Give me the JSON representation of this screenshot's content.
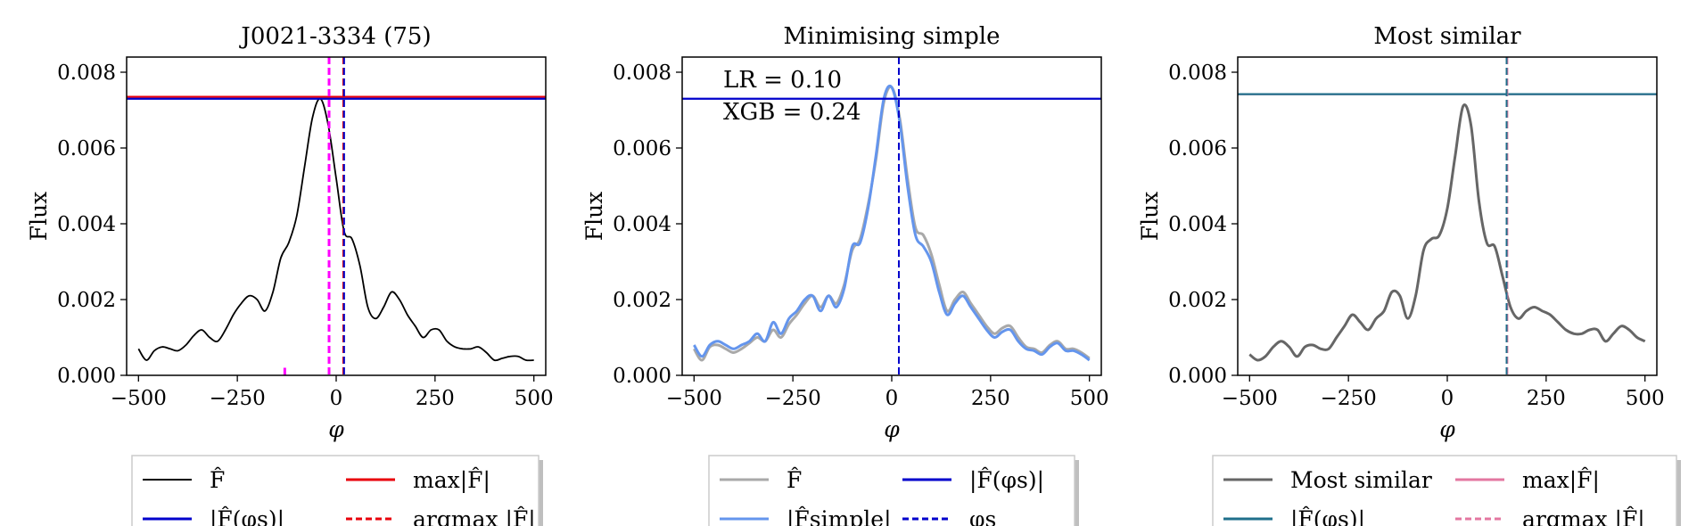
{
  "chart_data": [
    {
      "type": "line",
      "title": "J0021-3334 (75)",
      "xlabel": "φ",
      "ylabel": "Flux",
      "xlim": [
        -530,
        530
      ],
      "ylim": [
        0,
        0.0084
      ],
      "xticks": [
        -500,
        -250,
        0,
        250,
        500
      ],
      "xtick_labels": [
        "−500",
        "−250",
        "0",
        "250",
        "500"
      ],
      "yticks": [
        0,
        0.002,
        0.004,
        0.006,
        0.008
      ],
      "ytick_labels": [
        "0.000",
        "0.002",
        "0.004",
        "0.006",
        "0.008"
      ],
      "series": [
        {
          "name": "F̂",
          "color": "#000000",
          "x": [
            -500,
            -480,
            -460,
            -440,
            -420,
            -400,
            -380,
            -360,
            -340,
            -320,
            -300,
            -280,
            -260,
            -240,
            -220,
            -200,
            -180,
            -160,
            -140,
            -120,
            -100,
            -80,
            -60,
            -40,
            -20,
            0,
            20,
            40,
            60,
            80,
            100,
            120,
            140,
            160,
            180,
            200,
            220,
            240,
            260,
            280,
            300,
            320,
            340,
            360,
            380,
            400,
            420,
            440,
            460,
            480,
            500
          ],
          "y": [
            0.0007,
            0.0004,
            0.00065,
            0.00075,
            0.0007,
            0.00065,
            0.0008,
            0.00105,
            0.0012,
            0.001,
            0.0009,
            0.0012,
            0.0016,
            0.0019,
            0.0021,
            0.002,
            0.0017,
            0.0022,
            0.0031,
            0.0035,
            0.0042,
            0.0055,
            0.0068,
            0.0073,
            0.0066,
            0.0052,
            0.0038,
            0.0036,
            0.0029,
            0.0018,
            0.0015,
            0.0018,
            0.0022,
            0.002,
            0.0016,
            0.0013,
            0.001,
            0.0012,
            0.0012,
            0.0009,
            0.00075,
            0.0007,
            0.0007,
            0.00075,
            0.0006,
            0.0004,
            0.00045,
            0.0005,
            0.0005,
            0.0004,
            0.0004
          ]
        }
      ],
      "hlines": [
        {
          "name": "max|F̂|",
          "y": 0.00735,
          "color": "#e8000b",
          "style": "solid"
        },
        {
          "name": "|F̂(φs)|",
          "y": 0.0073,
          "color": "#0000cc",
          "style": "solid"
        }
      ],
      "vlines": [
        {
          "name": "argmax |F̂|",
          "x": 18,
          "color": "#e8000b",
          "style": "dashed"
        },
        {
          "name": "φs",
          "x": 20,
          "color": "#0000cc",
          "style": "dashed"
        },
        {
          "name": "",
          "x": -18,
          "color": "#ff00ff",
          "style": "dashed"
        }
      ],
      "markers": [
        {
          "x": -130,
          "y0": 0,
          "y1": 0.0002,
          "color": "#ff00ff"
        }
      ],
      "legend": [
        {
          "label": "F̂",
          "color": "#000000",
          "style": "solid"
        },
        {
          "label": "max|F̂|",
          "color": "#e8000b",
          "style": "solid"
        },
        {
          "label": "|F̂(φs)|",
          "color": "#0000cc",
          "style": "solid"
        },
        {
          "label": "argmax |F̂|",
          "color": "#e8000b",
          "style": "dashed"
        }
      ]
    },
    {
      "type": "line",
      "title": "Minimising simple",
      "xlabel": "φ",
      "ylabel": "Flux",
      "xlim": [
        -530,
        530
      ],
      "ylim": [
        0,
        0.0084
      ],
      "xticks": [
        -500,
        -250,
        0,
        250,
        500
      ],
      "xtick_labels": [
        "−500",
        "−250",
        "0",
        "250",
        "500"
      ],
      "yticks": [
        0,
        0.002,
        0.004,
        0.006,
        0.008
      ],
      "ytick_labels": [
        "0.000",
        "0.002",
        "0.004",
        "0.006",
        "0.008"
      ],
      "annotations": [
        "LR = 0.10",
        "XGB = 0.24"
      ],
      "series": [
        {
          "name": "F̂",
          "color": "#a9a9a9",
          "x": [
            -500,
            -480,
            -460,
            -440,
            -420,
            -400,
            -380,
            -360,
            -340,
            -320,
            -300,
            -280,
            -260,
            -240,
            -220,
            -200,
            -180,
            -160,
            -140,
            -120,
            -100,
            -80,
            -60,
            -40,
            -20,
            0,
            20,
            40,
            60,
            80,
            100,
            120,
            140,
            160,
            180,
            200,
            220,
            240,
            260,
            280,
            300,
            320,
            340,
            360,
            380,
            400,
            420,
            440,
            460,
            480,
            500
          ],
          "y": [
            0.0007,
            0.0004,
            0.00075,
            0.0008,
            0.0007,
            0.0006,
            0.0007,
            0.00085,
            0.001,
            0.0009,
            0.0012,
            0.001,
            0.00135,
            0.0016,
            0.0019,
            0.0021,
            0.0018,
            0.0021,
            0.0019,
            0.0024,
            0.0033,
            0.0036,
            0.0045,
            0.0057,
            0.0072,
            0.0076,
            0.0068,
            0.0052,
            0.0039,
            0.0037,
            0.0032,
            0.0024,
            0.0017,
            0.002,
            0.0022,
            0.0019,
            0.0016,
            0.0013,
            0.0011,
            0.00125,
            0.0013,
            0.001,
            0.00075,
            0.0007,
            0.0006,
            0.0008,
            0.0009,
            0.0007,
            0.0007,
            0.0006,
            0.00045
          ]
        },
        {
          "name": "|F̂simple|",
          "color": "#6495ed",
          "x": [
            -500,
            -480,
            -460,
            -440,
            -420,
            -400,
            -380,
            -360,
            -340,
            -320,
            -300,
            -280,
            -260,
            -240,
            -220,
            -200,
            -180,
            -160,
            -140,
            -120,
            -100,
            -80,
            -60,
            -40,
            -20,
            0,
            20,
            40,
            60,
            80,
            100,
            120,
            140,
            160,
            180,
            200,
            220,
            240,
            260,
            280,
            300,
            320,
            340,
            360,
            380,
            400,
            420,
            440,
            460,
            480,
            500
          ],
          "y": [
            0.0008,
            0.0005,
            0.0008,
            0.0009,
            0.0008,
            0.0007,
            0.0008,
            0.0009,
            0.0011,
            0.0009,
            0.0014,
            0.0011,
            0.0015,
            0.0017,
            0.002,
            0.0021,
            0.0017,
            0.0021,
            0.0018,
            0.0023,
            0.0034,
            0.0035,
            0.0044,
            0.0058,
            0.0073,
            0.0076,
            0.0067,
            0.005,
            0.0037,
            0.0034,
            0.003,
            0.0022,
            0.0016,
            0.0019,
            0.0021,
            0.0018,
            0.0015,
            0.0012,
            0.001,
            0.00115,
            0.0012,
            0.0009,
            0.0007,
            0.00065,
            0.00055,
            0.00075,
            0.00085,
            0.00065,
            0.00065,
            0.00055,
            0.0004
          ]
        }
      ],
      "hlines": [
        {
          "name": "|F̂(φs)|",
          "y": 0.0073,
          "color": "#0000cc",
          "style": "solid"
        }
      ],
      "vlines": [
        {
          "name": "φs",
          "x": 18,
          "color": "#0000cc",
          "style": "dashed"
        }
      ],
      "legend": [
        {
          "label": "F̂",
          "color": "#a9a9a9",
          "style": "solid"
        },
        {
          "label": "|F̂(φs)|",
          "color": "#0000cc",
          "style": "solid"
        },
        {
          "label": "|F̂simple|",
          "color": "#6495ed",
          "style": "solid"
        },
        {
          "label": "φs",
          "color": "#0000cc",
          "style": "dashed"
        }
      ]
    },
    {
      "type": "line",
      "title": "Most similar",
      "xlabel": "φ",
      "ylabel": "Flux",
      "xlim": [
        -530,
        530
      ],
      "ylim": [
        0,
        0.0084
      ],
      "xticks": [
        -500,
        -250,
        0,
        250,
        500
      ],
      "xtick_labels": [
        "−500",
        "−250",
        "0",
        "250",
        "500"
      ],
      "yticks": [
        0,
        0.002,
        0.004,
        0.006,
        0.008
      ],
      "ytick_labels": [
        "0.000",
        "0.002",
        "0.004",
        "0.006",
        "0.008"
      ],
      "series": [
        {
          "name": "Most similar",
          "color": "#666666",
          "x": [
            -500,
            -480,
            -460,
            -440,
            -420,
            -400,
            -380,
            -360,
            -340,
            -320,
            -300,
            -280,
            -260,
            -240,
            -220,
            -200,
            -180,
            -160,
            -140,
            -120,
            -100,
            -80,
            -60,
            -40,
            -20,
            0,
            20,
            40,
            60,
            80,
            100,
            120,
            140,
            160,
            180,
            200,
            220,
            240,
            260,
            280,
            300,
            320,
            340,
            360,
            380,
            400,
            420,
            440,
            460,
            480,
            500
          ],
          "y": [
            0.00055,
            0.0004,
            0.0005,
            0.00075,
            0.0009,
            0.00075,
            0.0005,
            0.00075,
            0.0008,
            0.0007,
            0.0007,
            0.001,
            0.0013,
            0.0016,
            0.0014,
            0.0012,
            0.0015,
            0.0017,
            0.0022,
            0.0021,
            0.0015,
            0.0021,
            0.0033,
            0.0036,
            0.0037,
            0.0044,
            0.0058,
            0.0071,
            0.0066,
            0.0046,
            0.0035,
            0.0034,
            0.0026,
            0.0018,
            0.0015,
            0.0017,
            0.0018,
            0.0017,
            0.0016,
            0.0014,
            0.0012,
            0.0011,
            0.0011,
            0.0012,
            0.0012,
            0.0009,
            0.0011,
            0.0013,
            0.0012,
            0.001,
            0.0009
          ]
        }
      ],
      "x_shift": 150,
      "hlines": [
        {
          "name": "max|F̂|",
          "y": 0.00742,
          "color": "#e377a0",
          "style": "solid"
        },
        {
          "name": "|F̂(φs)|",
          "y": 0.00742,
          "color": "#1f6f8b",
          "style": "solid"
        }
      ],
      "vlines": [
        {
          "name": "argmax |F̂|",
          "x": 152,
          "color": "#e377a0",
          "style": "dashed"
        },
        {
          "name": "",
          "x": 150,
          "color": "#1f6f8b",
          "style": "dashed"
        }
      ],
      "legend": [
        {
          "label": "Most similar",
          "color": "#666666",
          "style": "solid"
        },
        {
          "label": "max|F̂|",
          "color": "#e377a0",
          "style": "solid"
        },
        {
          "label": "|F̂(φs)|",
          "color": "#1f6f8b",
          "style": "solid"
        },
        {
          "label": "argmax |F̂|",
          "color": "#e377a0",
          "style": "dashed"
        }
      ]
    }
  ]
}
